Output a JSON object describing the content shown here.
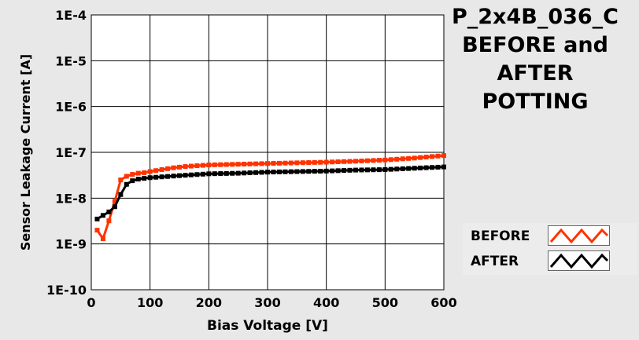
{
  "title_lines": [
    "P_2x4B_036_C",
    "BEFORE and",
    "AFTER",
    "POTTING"
  ],
  "chart_data": {
    "type": "line",
    "title": "P_2x4B_036_C BEFORE and AFTER POTTING",
    "xlabel": "Bias Voltage [V]",
    "ylabel": "Sensor Leakage Current [A]",
    "xlim": [
      0,
      600
    ],
    "ylim": [
      1e-10,
      0.0001
    ],
    "yscale": "log",
    "grid": true,
    "legend_position": "bottom-right",
    "x_ticks": [
      "0",
      "100",
      "200",
      "300",
      "400",
      "500",
      "600"
    ],
    "x_tick_values": [
      0,
      100,
      200,
      300,
      400,
      500,
      600
    ],
    "y_ticks": [
      "1E-4",
      "1E-5",
      "1E-6",
      "1E-7",
      "1E-8",
      "1E-9",
      "1E-10"
    ],
    "y_tick_values": [
      0.0001,
      1e-05,
      1e-06,
      1e-07,
      1e-08,
      1e-09,
      1e-10
    ],
    "series": [
      {
        "name": "BEFORE",
        "color": "#ff3300",
        "points": [
          [
            10,
            2e-09
          ],
          [
            20,
            1.3e-09
          ],
          [
            30,
            3.2e-09
          ],
          [
            40,
            8.5e-09
          ],
          [
            50,
            2.5e-08
          ],
          [
            60,
            3e-08
          ],
          [
            70,
            3.3e-08
          ],
          [
            80,
            3.5e-08
          ],
          [
            90,
            3.6e-08
          ],
          [
            100,
            3.8e-08
          ],
          [
            120,
            4.2e-08
          ],
          [
            140,
            4.6e-08
          ],
          [
            160,
            4.9e-08
          ],
          [
            180,
            5.1e-08
          ],
          [
            200,
            5.3e-08
          ],
          [
            250,
            5.5e-08
          ],
          [
            300,
            5.7e-08
          ],
          [
            350,
            5.9e-08
          ],
          [
            400,
            6.1e-08
          ],
          [
            450,
            6.4e-08
          ],
          [
            500,
            6.8e-08
          ],
          [
            550,
            7.5e-08
          ],
          [
            600,
            8.5e-08
          ]
        ]
      },
      {
        "name": "AFTER",
        "color": "#000000",
        "points": [
          [
            10,
            3.5e-09
          ],
          [
            20,
            4.2e-09
          ],
          [
            30,
            5e-09
          ],
          [
            40,
            6.5e-09
          ],
          [
            50,
            1.2e-08
          ],
          [
            60,
            2e-08
          ],
          [
            70,
            2.4e-08
          ],
          [
            80,
            2.6e-08
          ],
          [
            90,
            2.7e-08
          ],
          [
            100,
            2.8e-08
          ],
          [
            150,
            3.1e-08
          ],
          [
            200,
            3.4e-08
          ],
          [
            250,
            3.5e-08
          ],
          [
            300,
            3.7e-08
          ],
          [
            350,
            3.8e-08
          ],
          [
            400,
            3.9e-08
          ],
          [
            450,
            4.1e-08
          ],
          [
            500,
            4.2e-08
          ],
          [
            550,
            4.5e-08
          ],
          [
            600,
            4.8e-08
          ]
        ]
      }
    ]
  }
}
